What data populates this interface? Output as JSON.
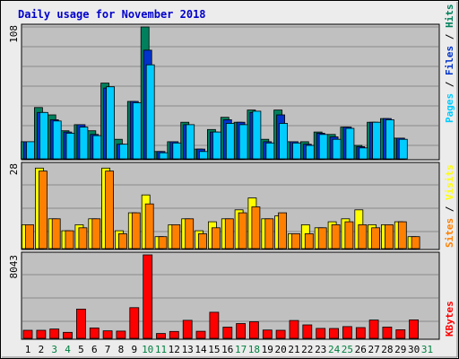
{
  "chart_data": [
    {
      "type": "bar",
      "title": "Daily usage for November 2018",
      "categories": [
        "1",
        "2",
        "3",
        "4",
        "5",
        "6",
        "7",
        "8",
        "9",
        "10",
        "11",
        "12",
        "13",
        "14",
        "15",
        "16",
        "17",
        "18",
        "19",
        "20",
        "21",
        "22",
        "23",
        "24",
        "25",
        "26",
        "27",
        "28",
        "29",
        "30",
        "31"
      ],
      "weekend_days": [
        "3",
        "4",
        "10",
        "11",
        "17",
        "18",
        "24",
        "25",
        "31"
      ],
      "ymax_label": "108",
      "ylim": [
        0,
        108
      ],
      "axis_label_parts": [
        "Pages",
        "Files",
        "Hits"
      ],
      "axis_label_separator": " / ",
      "series": [
        {
          "name": "Hits",
          "color": "#00805c",
          "values": [
            14,
            42,
            36,
            23,
            28,
            23,
            62,
            16,
            47,
            108,
            6,
            14,
            30,
            8,
            24,
            34,
            30,
            40,
            16,
            40,
            14,
            14,
            22,
            20,
            26,
            11,
            30,
            33,
            17,
            0,
            0
          ]
        },
        {
          "name": "Files",
          "color": "#0033cc",
          "values": [
            14,
            38,
            32,
            22,
            28,
            20,
            58,
            12,
            47,
            89,
            6,
            14,
            28,
            8,
            22,
            32,
            30,
            38,
            14,
            36,
            14,
            12,
            21,
            18,
            26,
            10,
            30,
            33,
            17,
            0,
            0
          ]
        },
        {
          "name": "Pages",
          "color": "#00ccff",
          "values": [
            14,
            38,
            31,
            21,
            26,
            19,
            59,
            12,
            46,
            77,
            5,
            13,
            28,
            6,
            22,
            29,
            28,
            39,
            13,
            29,
            13,
            11,
            20,
            16,
            25,
            9,
            30,
            32,
            16,
            0,
            0
          ]
        }
      ]
    },
    {
      "type": "bar",
      "ymax_label": "28",
      "ylim": [
        0,
        28
      ],
      "axis_label_parts": [
        "Sites",
        "Visits"
      ],
      "axis_label_separator": " / ",
      "series": [
        {
          "name": "Visits",
          "color": "#ffff00",
          "values": [
            8,
            27,
            10,
            6,
            8,
            10,
            27,
            6,
            12,
            18,
            4,
            8,
            10,
            6,
            9,
            10,
            13,
            17,
            10,
            11,
            5,
            8,
            7,
            9,
            10,
            13,
            8,
            8,
            9,
            4,
            0
          ]
        },
        {
          "name": "Sites",
          "color": "#ff8000",
          "values": [
            8,
            26,
            10,
            6,
            7,
            10,
            26,
            5,
            12,
            15,
            4,
            8,
            10,
            5,
            7,
            10,
            12,
            14,
            10,
            12,
            5,
            5,
            7,
            8,
            9,
            8,
            7,
            8,
            9,
            4,
            0
          ]
        }
      ]
    },
    {
      "type": "bar",
      "ymax_label": "8043",
      "ylim": [
        0,
        8043
      ],
      "axis_label_parts": [
        "KBytes"
      ],
      "axis_label_separator": "",
      "series": [
        {
          "name": "KBytes",
          "color": "#ff0000",
          "values": [
            780,
            780,
            900,
            580,
            2820,
            1000,
            730,
            700,
            2960,
            8043,
            470,
            670,
            1740,
            680,
            2520,
            1080,
            1430,
            1600,
            800,
            780,
            1720,
            1300,
            960,
            950,
            1130,
            1040,
            1760,
            1090,
            830,
            1780,
            0
          ]
        }
      ]
    }
  ]
}
